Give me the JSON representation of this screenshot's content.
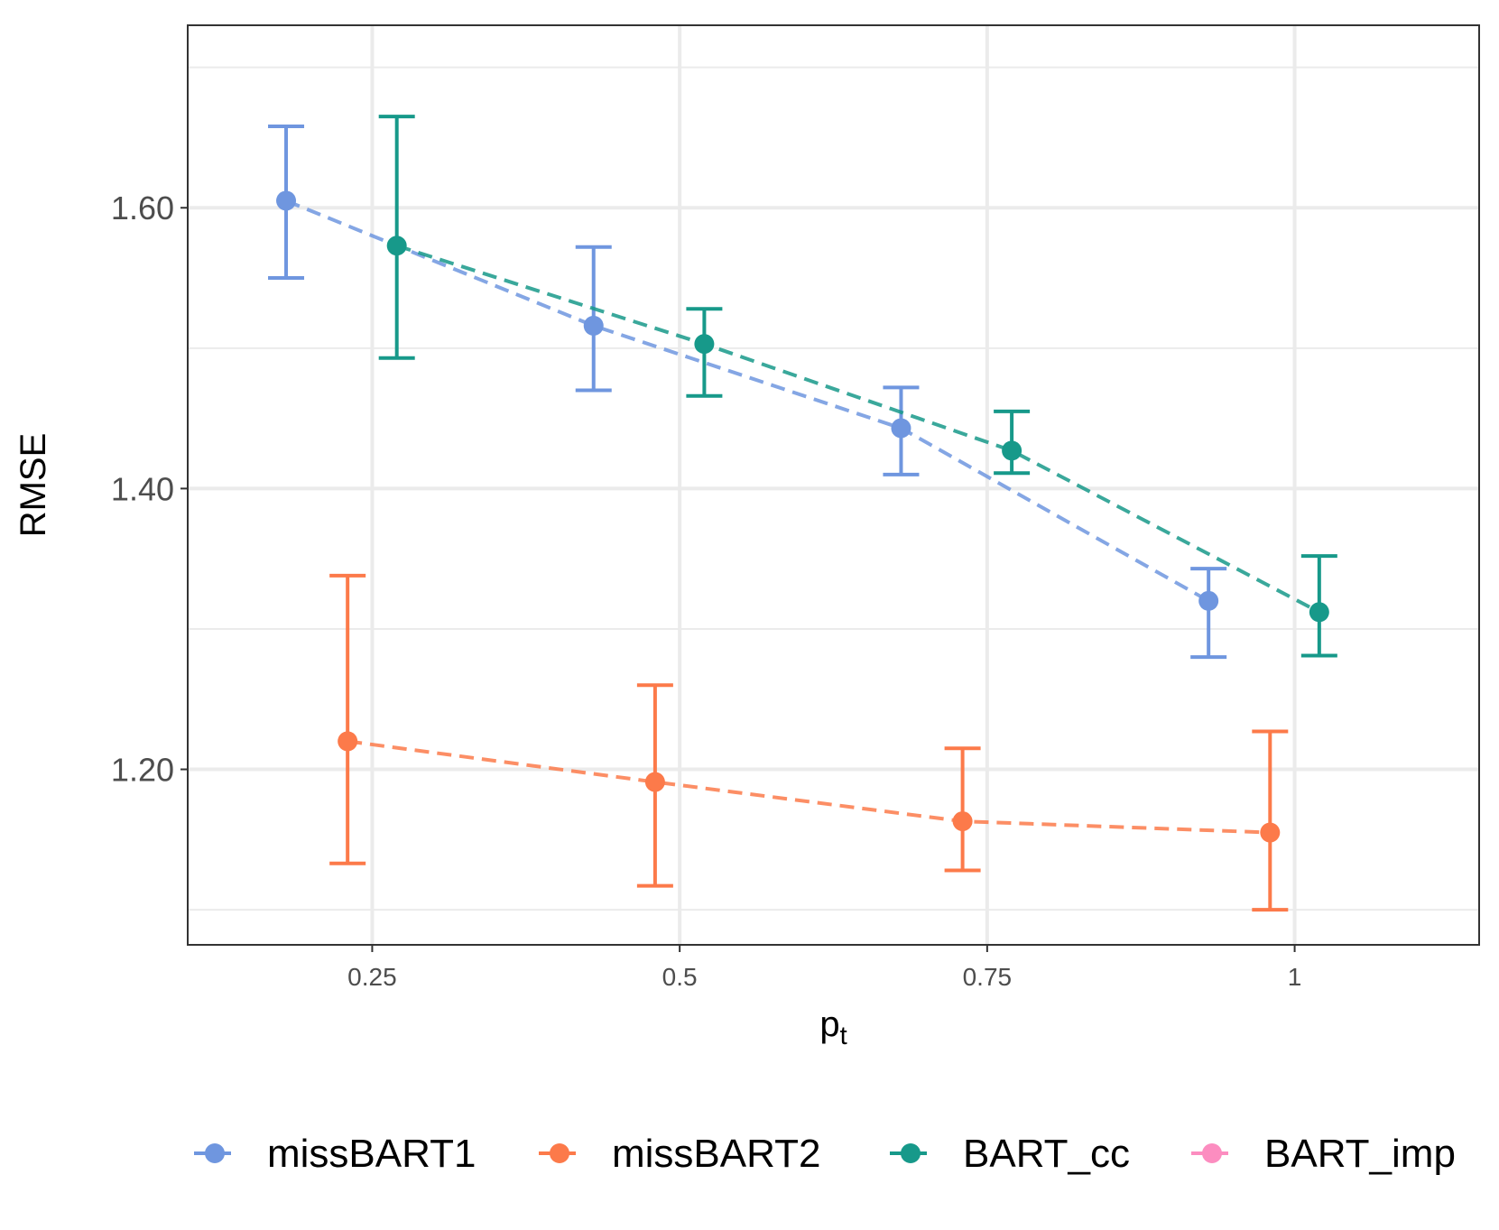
{
  "chart_data": {
    "type": "scatter",
    "title": "",
    "xlabel_base": "p",
    "xlabel_sub": "t",
    "ylabel": "RMSE",
    "xlim": [
      0.1,
      1.15
    ],
    "ylim": [
      1.075,
      1.73
    ],
    "grid": true,
    "x_ticks": [
      0.25,
      0.5,
      0.75,
      1
    ],
    "x_tick_labels": [
      "0.25",
      "0.5",
      "0.75",
      "1"
    ],
    "y_ticks": [
      1.2,
      1.4,
      1.6
    ],
    "y_tick_labels": [
      "1.20",
      "1.40",
      "1.60"
    ],
    "y_minor_ticks": [
      1.1,
      1.3,
      1.5,
      1.7
    ],
    "legend_position": "bottom",
    "series": [
      {
        "name": "missBART1",
        "color": "#6f96df",
        "x": [
          0.18,
          0.43,
          0.68,
          0.93
        ],
        "y": [
          1.605,
          1.516,
          1.443,
          1.32
        ],
        "lower": [
          1.55,
          1.47,
          1.41,
          1.28
        ],
        "upper": [
          1.658,
          1.572,
          1.472,
          1.343
        ]
      },
      {
        "name": "missBART2",
        "color": "#fc7a4a",
        "x": [
          0.23,
          0.48,
          0.73,
          0.98
        ],
        "y": [
          1.22,
          1.191,
          1.163,
          1.155
        ],
        "lower": [
          1.133,
          1.117,
          1.128,
          1.1
        ],
        "upper": [
          1.338,
          1.26,
          1.215,
          1.227
        ]
      },
      {
        "name": "BART_cc",
        "color": "#17998a",
        "x": [
          0.27,
          0.52,
          0.77,
          1.02
        ],
        "y": [
          1.573,
          1.503,
          1.427,
          1.312
        ],
        "lower": [
          1.493,
          1.466,
          1.411,
          1.281
        ],
        "upper": [
          1.665,
          1.528,
          1.455,
          1.352
        ]
      },
      {
        "name": "BART_imp",
        "color": "#fc8dc0",
        "x": [],
        "y": [],
        "lower": [],
        "upper": []
      }
    ]
  }
}
